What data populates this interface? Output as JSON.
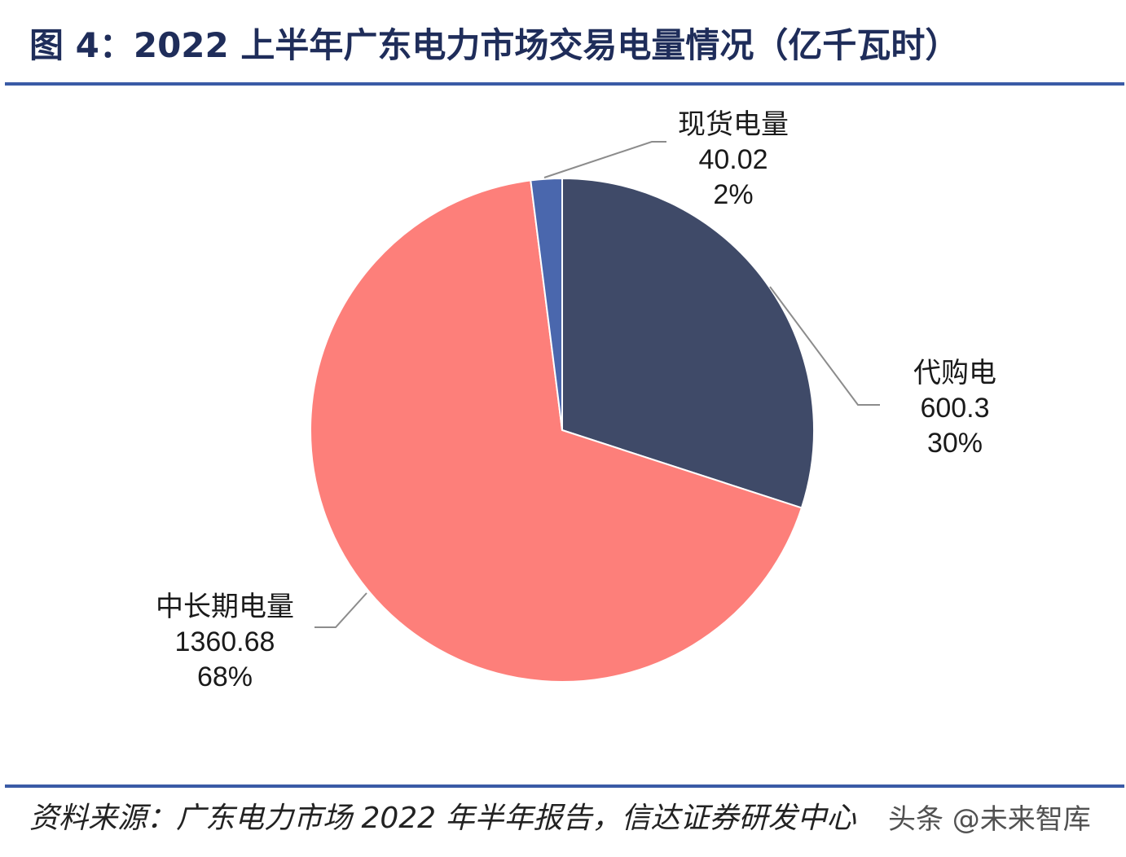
{
  "figure": {
    "title": "图 4：2022 上半年广东电力市场交易电量情况（亿千瓦时）",
    "source": "资料来源：广东电力市场 2022 年半年报告，信达证券研发中心",
    "watermark": "头条 @未来智库"
  },
  "chart_data": {
    "type": "pie",
    "title": "图 4：2022 上半年广东电力市场交易电量情况（亿千瓦时）",
    "start": "12 o'clock",
    "direction": "clockwise",
    "slices": [
      {
        "label": "代购电",
        "value": 600.3,
        "value_text": "600.3",
        "percent_text": "30%",
        "color": "#3f4a68"
      },
      {
        "label": "中长期电量",
        "value": 1360.68,
        "value_text": "1360.68",
        "percent_text": "68%",
        "color": "#fd7f7a"
      },
      {
        "label": "现货电量",
        "value": 40.02,
        "value_text": "40.02",
        "percent_text": "2%",
        "color": "#4a67ad"
      }
    ],
    "leader_line_color": "#8c8c8c"
  }
}
